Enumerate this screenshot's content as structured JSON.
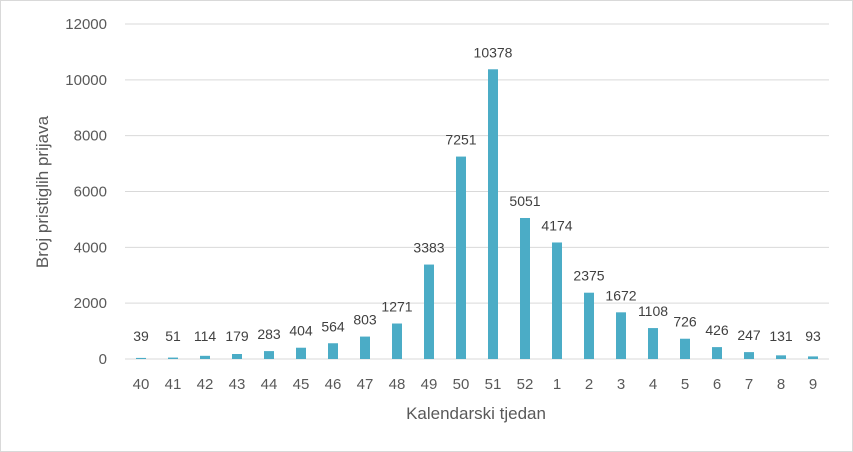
{
  "chart_data": {
    "type": "bar",
    "title": "",
    "xlabel": "Kalendarski tjedan",
    "ylabel": "Broj pristiglih prijava",
    "categories": [
      "40",
      "41",
      "42",
      "43",
      "44",
      "45",
      "46",
      "47",
      "48",
      "49",
      "50",
      "51",
      "52",
      "1",
      "2",
      "3",
      "4",
      "5",
      "6",
      "7",
      "8",
      "9"
    ],
    "values": [
      39,
      51,
      114,
      179,
      283,
      404,
      564,
      803,
      1271,
      3383,
      7251,
      10378,
      5051,
      4174,
      2375,
      1672,
      1108,
      726,
      426,
      247,
      131,
      93
    ],
    "ylim": [
      0,
      12000
    ],
    "yticks": [
      0,
      2000,
      4000,
      6000,
      8000,
      10000,
      12000
    ],
    "grid": true,
    "legend": "none",
    "bar_color": "#4bacc6",
    "gridline_color": "#d9d9d9"
  }
}
